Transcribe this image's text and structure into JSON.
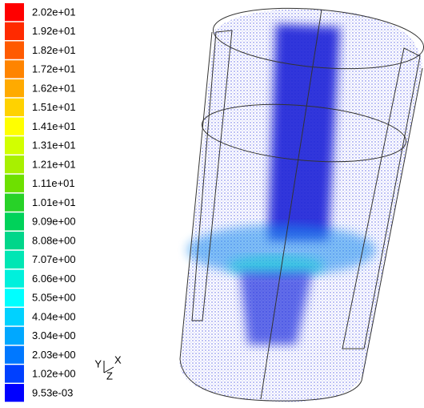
{
  "colorbar": {
    "levels": [
      {
        "label": "2.02e+01",
        "color": "#ff0000"
      },
      {
        "label": "1.92e+01",
        "color": "#ff2a00"
      },
      {
        "label": "1.82e+01",
        "color": "#ff5a00"
      },
      {
        "label": "1.72e+01",
        "color": "#ff8400"
      },
      {
        "label": "1.62e+01",
        "color": "#ffaa00"
      },
      {
        "label": "1.51e+01",
        "color": "#ffd200"
      },
      {
        "label": "1.41e+01",
        "color": "#ffff00"
      },
      {
        "label": "1.31e+01",
        "color": "#d2ff00"
      },
      {
        "label": "1.21e+01",
        "color": "#a8f000"
      },
      {
        "label": "1.11e+01",
        "color": "#6ee000"
      },
      {
        "label": "1.01e+01",
        "color": "#28d228"
      },
      {
        "label": "9.09e+00",
        "color": "#00d25a"
      },
      {
        "label": "8.08e+00",
        "color": "#00d68a"
      },
      {
        "label": "7.07e+00",
        "color": "#00e6b4"
      },
      {
        "label": "6.06e+00",
        "color": "#00f0dc"
      },
      {
        "label": "5.05e+00",
        "color": "#00ffff"
      },
      {
        "label": "4.04e+00",
        "color": "#00d2ff"
      },
      {
        "label": "3.04e+00",
        "color": "#00a8ff"
      },
      {
        "label": "2.03e+00",
        "color": "#0078ff"
      },
      {
        "label": "1.02e+00",
        "color": "#0040ff"
      },
      {
        "label": "9.53e-03",
        "color": "#0000ff"
      }
    ]
  },
  "axes": {
    "y": "Y",
    "x": "X",
    "z": "Z"
  }
}
